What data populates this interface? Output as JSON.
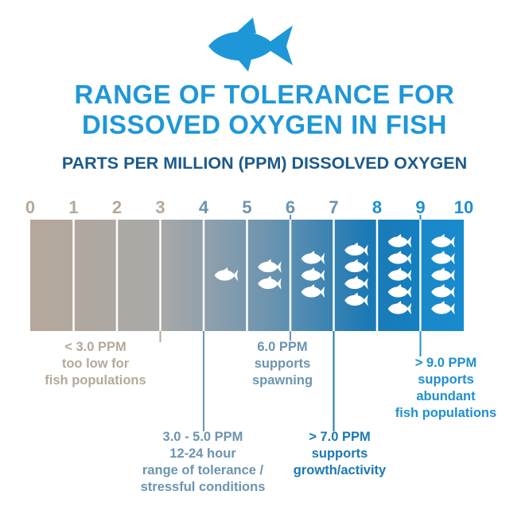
{
  "title": {
    "line1": "RANGE OF TOLERANCE FOR",
    "line2": "DISSOVED OXYGEN IN FISH"
  },
  "subtitle": "PARTS PER MILLION (PPM) DISSOLVED OXYGEN",
  "scale": {
    "ticks": [
      "0",
      "1",
      "2",
      "3",
      "4",
      "5",
      "6",
      "7",
      "8",
      "9",
      "10"
    ],
    "fish_per_segment": [
      0,
      0,
      0,
      0,
      1,
      2,
      3,
      4,
      5,
      5
    ]
  },
  "icons": {
    "header": "fish-icon",
    "marks": "fish-icon"
  },
  "colors": {
    "title": "#1e97d8",
    "subtitle": "#1d5a8a",
    "low": "#b5a89a",
    "mid": "#6c94b0",
    "high": "#1b79b4",
    "max": "#1f8fcf",
    "fish": "#ffffff"
  },
  "callouts": {
    "below3": {
      "lines": [
        "< 3.0 PPM",
        "too low for",
        "fish populations"
      ],
      "at": 3.0
    },
    "range3to5": {
      "lines": [
        "3.0 - 5.0 PPM",
        "12-24 hour",
        "range of tolerance /",
        "stressful conditions"
      ],
      "at": 4.0
    },
    "spawning": {
      "lines": [
        "6.0 PPM",
        "supports",
        "spawning"
      ],
      "at": 6.0
    },
    "growth": {
      "lines": [
        "> 7.0 PPM",
        "supports",
        "growth/activity"
      ],
      "at": 7.0
    },
    "abundant": {
      "lines": [
        "> 9.0 PPM",
        "supports",
        "abundant",
        "fish populations"
      ],
      "at": 9.0
    }
  }
}
